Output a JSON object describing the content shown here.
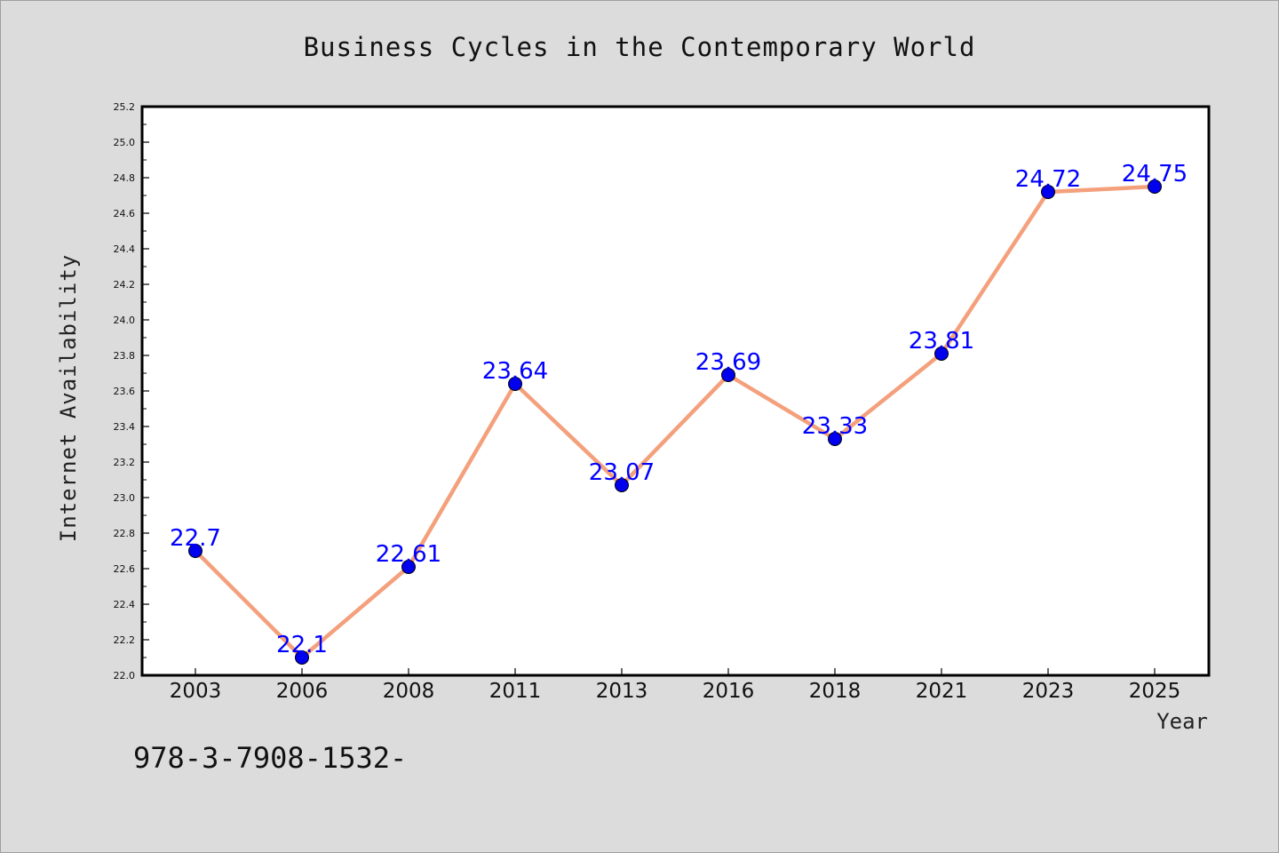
{
  "chart_data": {
    "type": "line",
    "title": "Business Cycles in the Contemporary World",
    "xlabel": "Year",
    "ylabel": "Internet Availability",
    "categories": [
      "2003",
      "2006",
      "2008",
      "2011",
      "2013",
      "2016",
      "2018",
      "2021",
      "2023",
      "2025"
    ],
    "values": [
      22.7,
      22.1,
      22.61,
      23.64,
      23.07,
      23.69,
      23.33,
      23.81,
      24.72,
      24.75
    ],
    "data_labels": [
      "22.7",
      "22.1",
      "22.61",
      "23.64",
      "23.07",
      "23.69",
      "23.33",
      "23.81",
      "24.72",
      "24.75"
    ],
    "ylim": [
      22.0,
      25.2
    ],
    "yticks": [
      "22.0",
      "22.2",
      "22.4",
      "22.6",
      "22.8",
      "23.0",
      "23.2",
      "23.4",
      "23.6",
      "23.8",
      "24.0",
      "24.2",
      "24.4",
      "24.6",
      "24.8",
      "25.0",
      "25.2"
    ],
    "grid": false,
    "legend": "none",
    "line_color": "#f4a07c",
    "marker_color": "#0000ee",
    "label_color": "#0000ff",
    "plot_background": "#ffffff",
    "figure_background": "#dcdcdc"
  },
  "footnote": "978-3-7908-1532-"
}
